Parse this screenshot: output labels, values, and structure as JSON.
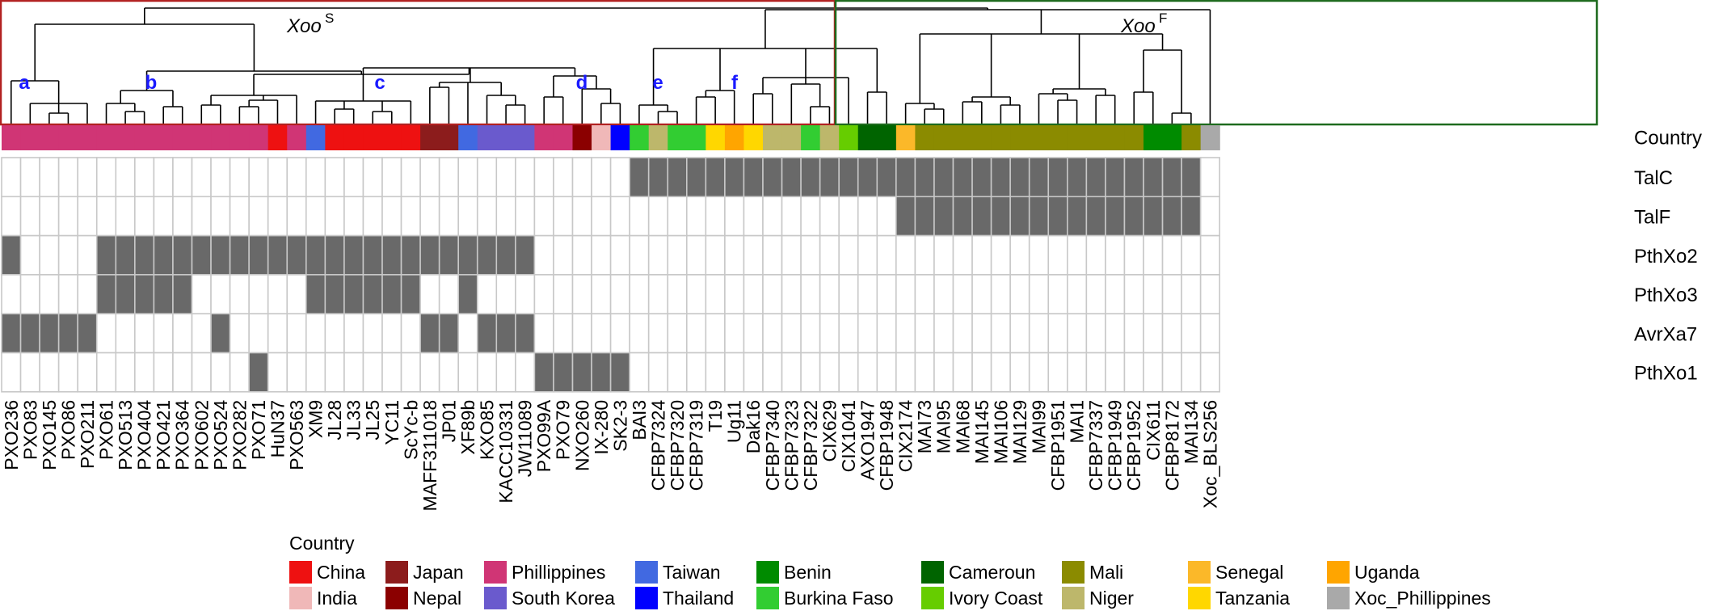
{
  "chart_data": {
    "type": "heatmap",
    "description_labels": {
      "clade_xoo_s_main": "Xoo",
      "clade_xoo_s_sup": "S",
      "clade_xoo_f_main": "Xoo",
      "clade_xoo_f_sup": "F"
    },
    "subclade_labels": [
      "a",
      "b",
      "c",
      "d",
      "e",
      "f"
    ],
    "strains": [
      "PXO236",
      "PXO83",
      "PXO145",
      "PXO86",
      "PXO211",
      "PXO61",
      "PXO513",
      "PXO404",
      "PXO421",
      "PXO364",
      "PXO602",
      "PXO524",
      "PXO282",
      "PXO71",
      "HuN37",
      "PXO563",
      "XM9",
      "JL28",
      "JL33",
      "JL25",
      "YC11",
      "ScYc-b",
      "MAFF311018",
      "JP01",
      "XF89b",
      "KXO85",
      "KACC10331",
      "JW11089",
      "PXO99A",
      "PXO79",
      "NXO260",
      "IX-280",
      "SK2-3",
      "BAI3",
      "CFBP7324",
      "CFBP7320",
      "CFBP7319",
      "T19",
      "Ug11",
      "Dak16",
      "CFBP7340",
      "CFBP7323",
      "CFBP7322",
      "CIX629",
      "CIX1041",
      "AXO1947",
      "CFBP1948",
      "CIX2174",
      "MAI73",
      "MAI95",
      "MAI68",
      "MAI145",
      "MAI106",
      "MAI129",
      "MAI99",
      "CFBP1951",
      "MAI1",
      "CFBP7337",
      "CFBP1949",
      "CFBP1952",
      "CIX611",
      "CFBP8172",
      "MAI134",
      "Xoc_BLS256"
    ],
    "country_row_label": "Country",
    "countries": [
      "Phillippines",
      "Phillippines",
      "Phillippines",
      "Phillippines",
      "Phillippines",
      "Phillippines",
      "Phillippines",
      "Phillippines",
      "Phillippines",
      "Phillippines",
      "Phillippines",
      "Phillippines",
      "Phillippines",
      "Phillippines",
      "China",
      "Phillippines",
      "Taiwan",
      "China",
      "China",
      "China",
      "China",
      "China",
      "Japan",
      "Japan",
      "Taiwan",
      "South Korea",
      "South Korea",
      "South Korea",
      "Phillippines",
      "Phillippines",
      "Nepal",
      "India",
      "Thailand",
      "Burkina Faso",
      "Niger",
      "Burkina Faso",
      "Burkina Faso",
      "Tanzania",
      "Uganda",
      "Tanzania",
      "Niger",
      "Niger",
      "Burkina Faso",
      "Niger",
      "Ivory Coast",
      "Cameroun",
      "Cameroun",
      "Senegal",
      "Mali",
      "Mali",
      "Mali",
      "Mali",
      "Mali",
      "Mali",
      "Mali",
      "Mali",
      "Mali",
      "Mali",
      "Mali",
      "Mali",
      "Benin",
      "Benin",
      "Mali",
      "Xoc_Phillippines"
    ],
    "rows": [
      "TalC",
      "TalF",
      "PthXo2",
      "PthXo3",
      "AvrXa7",
      "PthXo1"
    ],
    "matrix": [
      [
        0,
        0,
        0,
        0,
        0,
        0,
        0,
        0,
        0,
        0,
        0,
        0,
        0,
        0,
        0,
        0,
        0,
        0,
        0,
        0,
        0,
        0,
        0,
        0,
        0,
        0,
        0,
        0,
        0,
        0,
        0,
        0,
        0,
        1,
        1,
        1,
        1,
        1,
        1,
        1,
        1,
        1,
        1,
        1,
        1,
        1,
        1,
        1,
        1,
        1,
        1,
        1,
        1,
        1,
        1,
        1,
        1,
        1,
        1,
        1,
        1,
        1,
        1,
        0
      ],
      [
        0,
        0,
        0,
        0,
        0,
        0,
        0,
        0,
        0,
        0,
        0,
        0,
        0,
        0,
        0,
        0,
        0,
        0,
        0,
        0,
        0,
        0,
        0,
        0,
        0,
        0,
        0,
        0,
        0,
        0,
        0,
        0,
        0,
        0,
        0,
        0,
        0,
        0,
        0,
        0,
        0,
        0,
        0,
        0,
        0,
        0,
        0,
        1,
        1,
        1,
        1,
        1,
        1,
        1,
        1,
        1,
        1,
        1,
        1,
        1,
        1,
        1,
        1,
        0
      ],
      [
        1,
        0,
        0,
        0,
        0,
        1,
        1,
        1,
        1,
        1,
        1,
        1,
        1,
        1,
        1,
        1,
        1,
        1,
        1,
        1,
        1,
        1,
        1,
        1,
        1,
        1,
        1,
        1,
        0,
        0,
        0,
        0,
        0,
        0,
        0,
        0,
        0,
        0,
        0,
        0,
        0,
        0,
        0,
        0,
        0,
        0,
        0,
        0,
        0,
        0,
        0,
        0,
        0,
        0,
        0,
        0,
        0,
        0,
        0,
        0,
        0,
        0,
        0,
        0
      ],
      [
        0,
        0,
        0,
        0,
        0,
        1,
        1,
        1,
        1,
        1,
        0,
        0,
        0,
        0,
        0,
        0,
        1,
        1,
        1,
        1,
        1,
        1,
        0,
        0,
        1,
        0,
        0,
        0,
        0,
        0,
        0,
        0,
        0,
        0,
        0,
        0,
        0,
        0,
        0,
        0,
        0,
        0,
        0,
        0,
        0,
        0,
        0,
        0,
        0,
        0,
        0,
        0,
        0,
        0,
        0,
        0,
        0,
        0,
        0,
        0,
        0,
        0,
        0,
        0
      ],
      [
        1,
        1,
        1,
        1,
        1,
        0,
        0,
        0,
        0,
        0,
        0,
        1,
        0,
        0,
        0,
        0,
        0,
        0,
        0,
        0,
        0,
        0,
        1,
        1,
        0,
        1,
        1,
        1,
        0,
        0,
        0,
        0,
        0,
        0,
        0,
        0,
        0,
        0,
        0,
        0,
        0,
        0,
        0,
        0,
        0,
        0,
        0,
        0,
        0,
        0,
        0,
        0,
        0,
        0,
        0,
        0,
        0,
        0,
        0,
        0,
        0,
        0,
        0,
        0
      ],
      [
        0,
        0,
        0,
        0,
        0,
        0,
        0,
        0,
        0,
        0,
        0,
        0,
        0,
        1,
        0,
        0,
        0,
        0,
        0,
        0,
        0,
        0,
        0,
        0,
        0,
        0,
        0,
        0,
        1,
        1,
        1,
        1,
        1,
        0,
        0,
        0,
        0,
        0,
        0,
        0,
        0,
        0,
        0,
        0,
        0,
        0,
        0,
        0,
        0,
        0,
        0,
        0,
        0,
        0,
        0,
        0,
        0,
        0,
        0,
        0,
        0,
        0,
        0,
        0
      ]
    ],
    "legend": {
      "title": "Country",
      "columns": [
        [
          {
            "name": "China",
            "color": "#ee1111"
          },
          {
            "name": "India",
            "color": "#f0b8b8"
          }
        ],
        [
          {
            "name": "Japan",
            "color": "#8c1c1c"
          },
          {
            "name": "Nepal",
            "color": "#8b0000"
          }
        ],
        [
          {
            "name": "Phillippines",
            "color": "#d03575"
          },
          {
            "name": "South Korea",
            "color": "#6a5acd"
          }
        ],
        [
          {
            "name": "Taiwan",
            "color": "#4169e1"
          },
          {
            "name": "Thailand",
            "color": "#0000ff"
          }
        ],
        [
          {
            "name": "Benin",
            "color": "#008b00"
          },
          {
            "name": "Burkina Faso",
            "color": "#32cd32"
          }
        ],
        [
          {
            "name": "Cameroun",
            "color": "#006400"
          },
          {
            "name": "Ivory Coast",
            "color": "#66cd00"
          }
        ],
        [
          {
            "name": "Mali",
            "color": "#8b8b00"
          },
          {
            "name": "Niger",
            "color": "#bdb76b"
          }
        ],
        [
          {
            "name": "Senegal",
            "color": "#fbb829"
          },
          {
            "name": "Tanzania",
            "color": "#ffd700"
          }
        ],
        [
          {
            "name": "Uganda",
            "color": "#ffa500"
          },
          {
            "name": "Xoc_Phillippines",
            "color": "#a9a9a9"
          }
        ]
      ]
    },
    "colors": {
      "present": "#696969",
      "absent": "#ffffff",
      "grid": "#c8c8c8",
      "clade_s_box": "#b22222",
      "clade_f_box": "#1e6b1e",
      "subclade_label": "#1a1aff",
      "tree": "#000000"
    }
  }
}
